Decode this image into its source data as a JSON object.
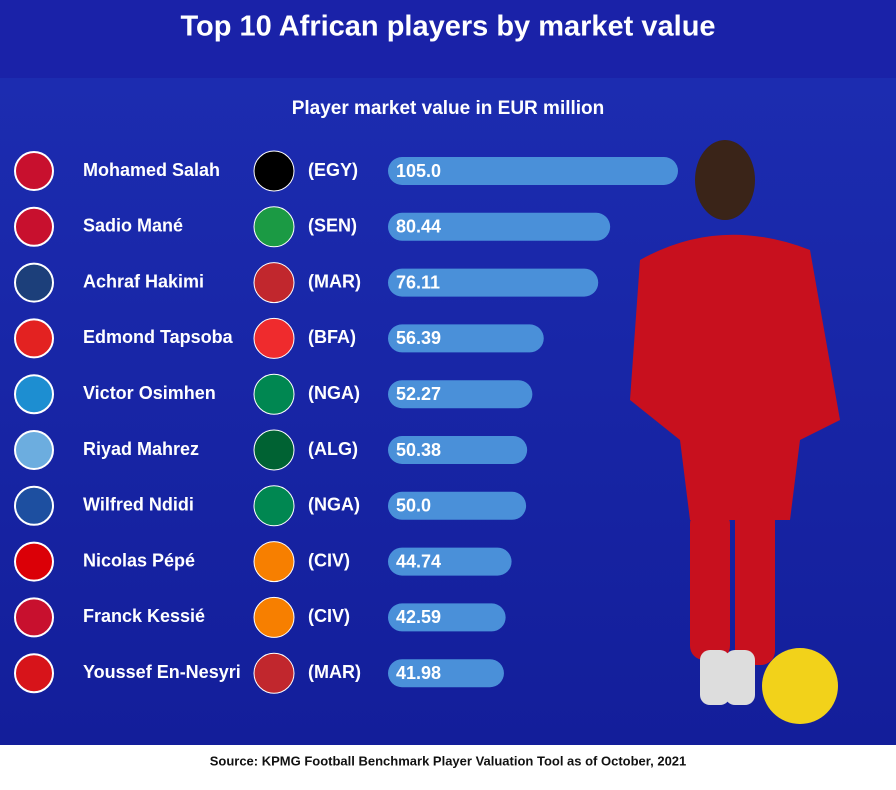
{
  "chart_data": {
    "type": "bar",
    "title": "Top 10 African players by market value",
    "subtitle": "Player market value in EUR million",
    "categories": [
      "Mohamed Salah",
      "Sadio Mané",
      "Achraf Hakimi",
      "Edmond Tapsoba",
      "Victor Osimhen",
      "Riyad Mahrez",
      "Wilfred Ndidi",
      "Nicolas Pépé",
      "Franck Kessié",
      "Youssef En-Nesyri"
    ],
    "countries": [
      "(EGY)",
      "(SEN)",
      "(MAR)",
      "(BFA)",
      "(NGA)",
      "(ALG)",
      "(NGA)",
      "(CIV)",
      "(CIV)",
      "(MAR)"
    ],
    "values": [
      105.0,
      80.44,
      76.11,
      56.39,
      52.27,
      50.38,
      50.0,
      44.74,
      42.59,
      41.98
    ],
    "value_labels": [
      "105.0",
      "80.44",
      "76.11",
      "56.39",
      "52.27",
      "50.38",
      "50.0",
      "44.74",
      "42.59",
      "41.98"
    ],
    "color": "#4a90d9",
    "source": "Source: KPMG Football Benchmark Player Valuation Tool as of October, 2021"
  }
}
